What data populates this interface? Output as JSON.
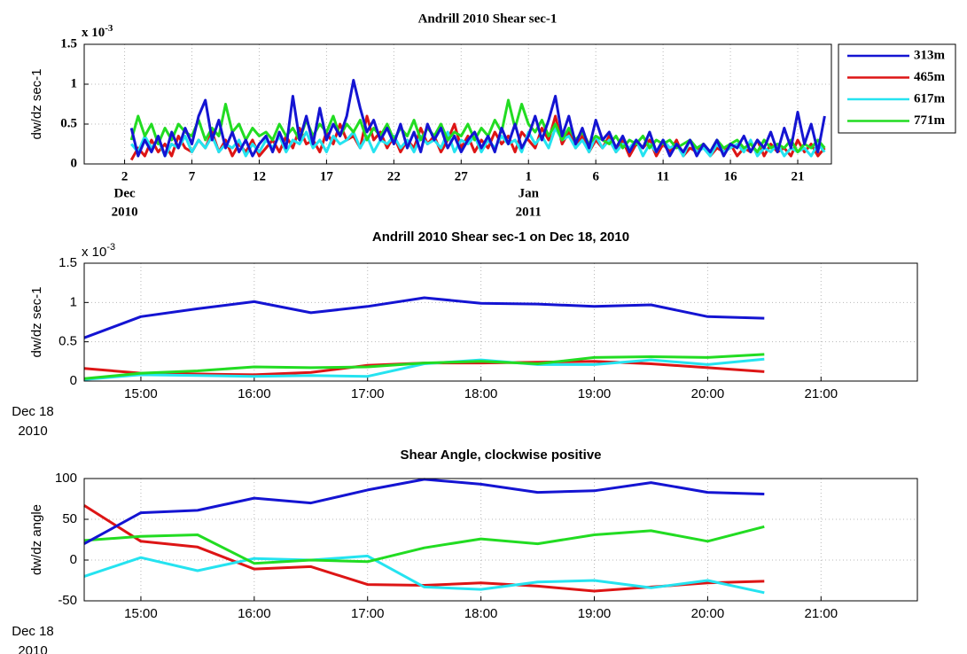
{
  "chart_data": [
    {
      "type": "line",
      "title": "Andrill 2010 Shear sec-1",
      "y_label": "dw/dz sec-1",
      "y_multiplier": "x 10",
      "y_multiplier_exp": "-3",
      "xlim": [
        -1,
        54.5
      ],
      "ylim": [
        0,
        1.5
      ],
      "xticks": [
        2,
        7,
        12,
        17,
        22,
        27,
        {
          "value": 32,
          "label": "1"
        },
        {
          "value": 37,
          "label": "6"
        },
        {
          "value": 42,
          "label": "11"
        },
        {
          "value": 47,
          "label": "16"
        },
        {
          "value": 52,
          "label": "21"
        }
      ],
      "xtick_sublabels": [
        {
          "value": 2,
          "lines": [
            "Dec",
            "2010"
          ]
        },
        {
          "value": 32,
          "lines": [
            "Jan",
            "2011"
          ]
        }
      ],
      "yticks": [
        0,
        0.5,
        1,
        1.5
      ],
      "grid": true,
      "legend": "outside-top-right",
      "x": [
        2.5,
        3,
        3.5,
        4,
        4.5,
        5,
        5.5,
        6,
        6.5,
        7,
        7.5,
        8,
        8.5,
        9,
        9.5,
        10,
        10.5,
        11,
        11.5,
        12,
        12.5,
        13,
        13.5,
        14,
        14.5,
        15,
        15.5,
        16,
        16.5,
        17,
        17.5,
        18,
        18.5,
        19,
        19.5,
        20,
        20.5,
        21,
        21.5,
        22,
        22.5,
        23,
        23.5,
        24,
        24.5,
        25,
        25.5,
        26,
        26.5,
        27,
        27.5,
        28,
        28.5,
        29,
        29.5,
        30,
        30.5,
        31,
        31.5,
        32,
        32.5,
        33,
        33.5,
        34,
        34.5,
        35,
        35.5,
        36,
        36.5,
        37,
        37.5,
        38,
        38.5,
        39,
        39.5,
        40,
        40.5,
        41,
        41.5,
        42,
        42.5,
        43,
        43.5,
        44,
        44.5,
        45,
        45.5,
        46,
        46.5,
        47,
        47.5,
        48,
        48.5,
        49,
        49.5,
        50,
        50.5,
        51,
        51.5,
        52,
        52.5,
        53,
        53.5,
        54
      ],
      "series": [
        {
          "name": "313m",
          "color": "#1414d2",
          "values": [
            0.45,
            0.1,
            0.3,
            0.15,
            0.35,
            0.1,
            0.4,
            0.2,
            0.45,
            0.25,
            0.6,
            0.8,
            0.3,
            0.55,
            0.2,
            0.4,
            0.15,
            0.3,
            0.1,
            0.25,
            0.35,
            0.15,
            0.4,
            0.2,
            0.85,
            0.3,
            0.6,
            0.25,
            0.7,
            0.3,
            0.5,
            0.35,
            0.6,
            1.05,
            0.7,
            0.4,
            0.55,
            0.3,
            0.45,
            0.25,
            0.5,
            0.2,
            0.4,
            0.15,
            0.5,
            0.3,
            0.45,
            0.2,
            0.35,
            0.15,
            0.3,
            0.4,
            0.2,
            0.35,
            0.15,
            0.45,
            0.25,
            0.5,
            0.2,
            0.35,
            0.6,
            0.3,
            0.55,
            0.85,
            0.35,
            0.6,
            0.25,
            0.45,
            0.2,
            0.55,
            0.3,
            0.4,
            0.2,
            0.35,
            0.15,
            0.3,
            0.2,
            0.4,
            0.15,
            0.3,
            0.1,
            0.25,
            0.15,
            0.3,
            0.1,
            0.25,
            0.15,
            0.3,
            0.1,
            0.25,
            0.2,
            0.35,
            0.15,
            0.3,
            0.2,
            0.4,
            0.15,
            0.45,
            0.2,
            0.65,
            0.25,
            0.5,
            0.15,
            0.6
          ]
        },
        {
          "name": "465m",
          "color": "#dd1515",
          "values": [
            0.05,
            0.2,
            0.1,
            0.3,
            0.15,
            0.25,
            0.1,
            0.35,
            0.2,
            0.15,
            0.3,
            0.2,
            0.4,
            0.15,
            0.3,
            0.1,
            0.25,
            0.15,
            0.3,
            0.1,
            0.2,
            0.3,
            0.15,
            0.35,
            0.2,
            0.45,
            0.25,
            0.3,
            0.15,
            0.4,
            0.25,
            0.5,
            0.3,
            0.35,
            0.2,
            0.6,
            0.3,
            0.4,
            0.2,
            0.35,
            0.15,
            0.3,
            0.2,
            0.45,
            0.25,
            0.35,
            0.15,
            0.3,
            0.5,
            0.2,
            0.35,
            0.15,
            0.3,
            0.2,
            0.4,
            0.25,
            0.35,
            0.15,
            0.4,
            0.3,
            0.2,
            0.45,
            0.3,
            0.6,
            0.25,
            0.4,
            0.2,
            0.35,
            0.15,
            0.3,
            0.2,
            0.35,
            0.15,
            0.3,
            0.1,
            0.25,
            0.2,
            0.3,
            0.1,
            0.25,
            0.15,
            0.3,
            0.1,
            0.2,
            0.15,
            0.25,
            0.1,
            0.2,
            0.15,
            0.25,
            0.1,
            0.2,
            0.15,
            0.3,
            0.1,
            0.25,
            0.15,
            0.2,
            0.1,
            0.3,
            0.15,
            0.25,
            0.1,
            0.2
          ]
        },
        {
          "name": "617m",
          "color": "#25e3f0",
          "values": [
            0.25,
            0.15,
            0.35,
            0.2,
            0.3,
            0.1,
            0.25,
            0.2,
            0.35,
            0.15,
            0.3,
            0.2,
            0.35,
            0.15,
            0.25,
            0.2,
            0.3,
            0.1,
            0.25,
            0.15,
            0.3,
            0.2,
            0.35,
            0.15,
            0.3,
            0.25,
            0.4,
            0.2,
            0.3,
            0.15,
            0.35,
            0.25,
            0.3,
            0.4,
            0.2,
            0.35,
            0.15,
            0.3,
            0.25,
            0.35,
            0.2,
            0.3,
            0.15,
            0.35,
            0.25,
            0.3,
            0.2,
            0.4,
            0.15,
            0.3,
            0.25,
            0.35,
            0.15,
            0.3,
            0.2,
            0.35,
            0.25,
            0.3,
            0.15,
            0.4,
            0.25,
            0.35,
            0.2,
            0.45,
            0.3,
            0.35,
            0.2,
            0.3,
            0.15,
            0.35,
            0.2,
            0.3,
            0.15,
            0.25,
            0.2,
            0.3,
            0.1,
            0.25,
            0.15,
            0.3,
            0.2,
            0.25,
            0.1,
            0.3,
            0.15,
            0.2,
            0.1,
            0.25,
            0.15,
            0.2,
            0.25,
            0.15,
            0.3,
            0.1,
            0.2,
            0.15,
            0.25,
            0.1,
            0.2,
            0.15,
            0.2,
            0.1,
            0.25,
            0.15
          ]
        },
        {
          "name": "771m",
          "color": "#22dc22",
          "values": [
            0.3,
            0.6,
            0.35,
            0.5,
            0.25,
            0.45,
            0.3,
            0.5,
            0.4,
            0.35,
            0.55,
            0.3,
            0.45,
            0.35,
            0.75,
            0.4,
            0.5,
            0.3,
            0.45,
            0.35,
            0.4,
            0.3,
            0.5,
            0.35,
            0.45,
            0.3,
            0.55,
            0.35,
            0.5,
            0.4,
            0.6,
            0.35,
            0.5,
            0.4,
            0.55,
            0.3,
            0.45,
            0.35,
            0.5,
            0.3,
            0.45,
            0.35,
            0.55,
            0.3,
            0.45,
            0.35,
            0.5,
            0.3,
            0.4,
            0.35,
            0.5,
            0.3,
            0.45,
            0.35,
            0.55,
            0.4,
            0.8,
            0.45,
            0.75,
            0.5,
            0.4,
            0.55,
            0.35,
            0.5,
            0.3,
            0.45,
            0.3,
            0.4,
            0.25,
            0.35,
            0.3,
            0.25,
            0.35,
            0.2,
            0.3,
            0.25,
            0.35,
            0.2,
            0.3,
            0.25,
            0.3,
            0.2,
            0.25,
            0.3,
            0.2,
            0.25,
            0.15,
            0.3,
            0.2,
            0.25,
            0.3,
            0.2,
            0.25,
            0.15,
            0.3,
            0.2,
            0.25,
            0.2,
            0.3,
            0.15,
            0.25,
            0.2,
            0.3,
            0.2
          ]
        }
      ]
    },
    {
      "type": "line",
      "title": "Andrill 2010 Shear sec-1 on Dec 18, 2010",
      "y_label": "dw/dz sec-1",
      "y_multiplier": "x 10",
      "y_multiplier_exp": "-3",
      "x_origin_label": [
        "Dec 18",
        "2010"
      ],
      "xlim": [
        14.5,
        21.85
      ],
      "ylim": [
        0,
        1.5
      ],
      "xticks": [
        {
          "value": 15,
          "label": "15:00"
        },
        {
          "value": 16,
          "label": "16:00"
        },
        {
          "value": 17,
          "label": "17:00"
        },
        {
          "value": 18,
          "label": "18:00"
        },
        {
          "value": 19,
          "label": "19:00"
        },
        {
          "value": 20,
          "label": "20:00"
        },
        {
          "value": 21,
          "label": "21:00"
        }
      ],
      "yticks": [
        0,
        0.5,
        1,
        1.5
      ],
      "grid": true,
      "x": [
        14.5,
        15,
        15.5,
        16,
        16.5,
        17,
        17.5,
        18,
        18.5,
        19,
        19.5,
        20,
        20.5
      ],
      "series": [
        {
          "color": "#1414d2",
          "values": [
            0.55,
            0.82,
            0.92,
            1.01,
            0.87,
            0.95,
            1.06,
            0.99,
            0.98,
            0.95,
            0.97,
            0.82,
            0.8
          ]
        },
        {
          "color": "#dd1515",
          "values": [
            0.16,
            0.1,
            0.09,
            0.08,
            0.11,
            0.2,
            0.23,
            0.23,
            0.24,
            0.25,
            0.22,
            0.17,
            0.12
          ]
        },
        {
          "color": "#25e3f0",
          "values": [
            0.02,
            0.08,
            0.07,
            0.06,
            0.07,
            0.06,
            0.22,
            0.27,
            0.21,
            0.21,
            0.27,
            0.21,
            0.28
          ]
        },
        {
          "color": "#22dc22",
          "values": [
            0.03,
            0.1,
            0.13,
            0.18,
            0.17,
            0.18,
            0.23,
            0.25,
            0.22,
            0.3,
            0.31,
            0.3,
            0.34
          ]
        }
      ]
    },
    {
      "type": "line",
      "title": "Shear Angle, clockwise positive",
      "y_label": "dw/dz angle",
      "x_origin_label": [
        "Dec 18",
        "2010"
      ],
      "xlim": [
        14.5,
        21.85
      ],
      "ylim": [
        -50,
        100
      ],
      "xticks": [
        {
          "value": 15,
          "label": "15:00"
        },
        {
          "value": 16,
          "label": "16:00"
        },
        {
          "value": 17,
          "label": "17:00"
        },
        {
          "value": 18,
          "label": "18:00"
        },
        {
          "value": 19,
          "label": "19:00"
        },
        {
          "value": 20,
          "label": "20:00"
        },
        {
          "value": 21,
          "label": "21:00"
        }
      ],
      "yticks": [
        -50,
        0,
        50,
        100
      ],
      "grid": true,
      "x": [
        14.5,
        15,
        15.5,
        16,
        16.5,
        17,
        17.5,
        18,
        18.5,
        19,
        19.5,
        20,
        20.5
      ],
      "series": [
        {
          "color": "#1414d2",
          "values": [
            20,
            58,
            61,
            76,
            70,
            86,
            99,
            93,
            83,
            85,
            95,
            83,
            81
          ]
        },
        {
          "color": "#dd1515",
          "values": [
            67,
            23,
            16,
            -11,
            -8,
            -30,
            -31,
            -28,
            -32,
            -38,
            -33,
            -28,
            -26
          ]
        },
        {
          "color": "#25e3f0",
          "values": [
            -20,
            3,
            -13,
            2,
            0,
            5,
            -33,
            -36,
            -27,
            -25,
            -34,
            -25,
            -40
          ]
        },
        {
          "color": "#22dc22",
          "values": [
            24,
            29,
            31,
            -4,
            0,
            -2,
            15,
            26,
            20,
            31,
            36,
            23,
            41
          ]
        }
      ]
    }
  ]
}
